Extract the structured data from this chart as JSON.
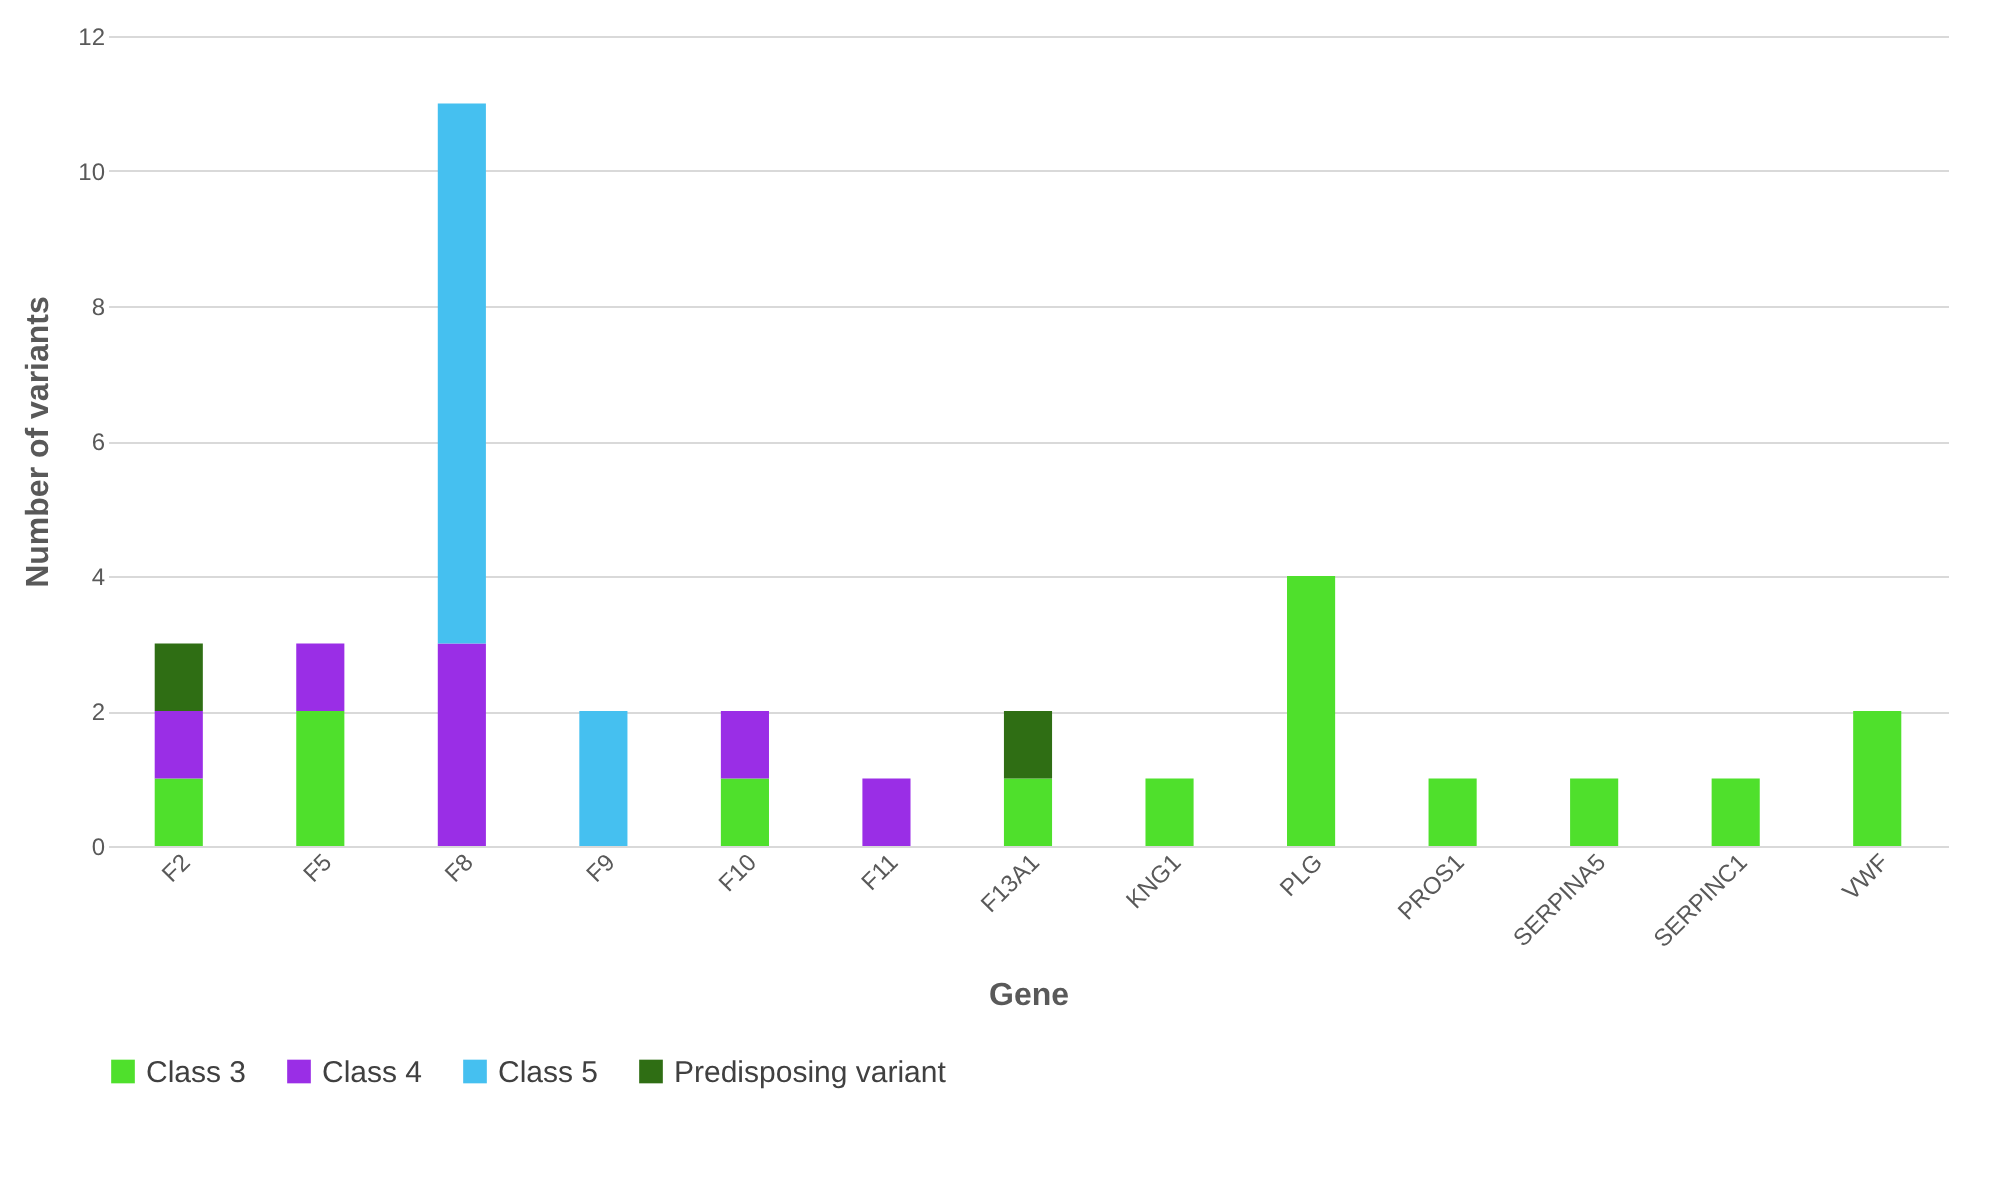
{
  "chart_data": {
    "type": "bar",
    "stacked": true,
    "xlabel": "Gene",
    "ylabel": "Number of variants",
    "categories": [
      "F2",
      "F5",
      "F8",
      "F9",
      "F10",
      "F11",
      "F13A1",
      "KNG1",
      "PLG",
      "PROS1",
      "SERPINA5",
      "SERPINC1",
      "VWF"
    ],
    "series": [
      {
        "name": "Class 3",
        "color": "#4fe02c",
        "values": [
          1,
          2,
          null,
          null,
          1,
          null,
          1,
          1,
          4,
          1,
          1,
          1,
          2
        ]
      },
      {
        "name": "Class 4",
        "color": "#9a2ee6",
        "values": [
          1,
          1,
          3,
          null,
          1,
          1,
          null,
          null,
          null,
          null,
          null,
          null,
          null
        ]
      },
      {
        "name": "Class 5",
        "color": "#45c0f0",
        "values": [
          null,
          null,
          8,
          2,
          null,
          null,
          null,
          null,
          null,
          null,
          null,
          null,
          null
        ]
      },
      {
        "name": "Predisposing variant",
        "color": "#2f6e14",
        "values": [
          1,
          null,
          null,
          null,
          null,
          null,
          1,
          null,
          null,
          null,
          null,
          null,
          null
        ]
      }
    ],
    "ylim": [
      0,
      12
    ],
    "yticks": [
      0,
      2,
      4,
      6,
      8,
      10,
      12
    ],
    "grid": "y",
    "legend": "bottom"
  }
}
